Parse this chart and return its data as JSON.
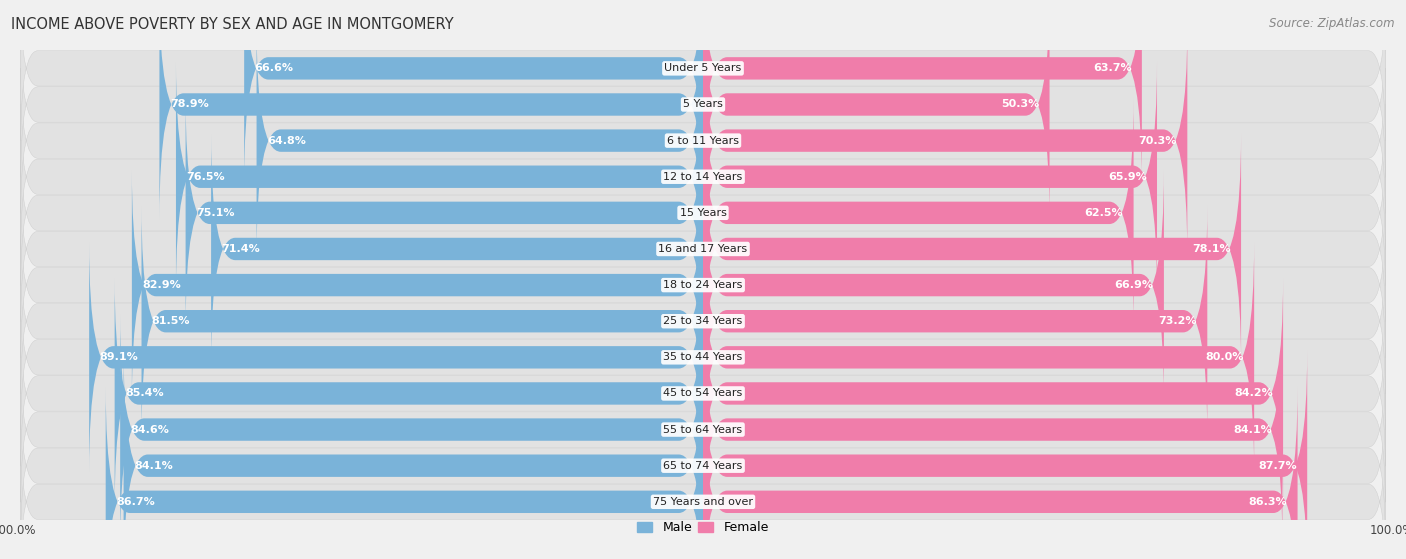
{
  "title": "INCOME ABOVE POVERTY BY SEX AND AGE IN MONTGOMERY",
  "source": "Source: ZipAtlas.com",
  "categories": [
    "Under 5 Years",
    "5 Years",
    "6 to 11 Years",
    "12 to 14 Years",
    "15 Years",
    "16 and 17 Years",
    "18 to 24 Years",
    "25 to 34 Years",
    "35 to 44 Years",
    "45 to 54 Years",
    "55 to 64 Years",
    "65 to 74 Years",
    "75 Years and over"
  ],
  "male_values": [
    66.6,
    78.9,
    64.8,
    76.5,
    75.1,
    71.4,
    82.9,
    81.5,
    89.1,
    85.4,
    84.6,
    84.1,
    86.7
  ],
  "female_values": [
    63.7,
    50.3,
    70.3,
    65.9,
    62.5,
    78.1,
    66.9,
    73.2,
    80.0,
    84.2,
    84.1,
    87.7,
    86.3
  ],
  "male_color": "#7ab3d9",
  "female_color": "#f07daa",
  "row_bg_color": "#e8e8e8",
  "background_color": "#f0f0f0",
  "male_label": "Male",
  "female_label": "Female",
  "title_fontsize": 10.5,
  "source_fontsize": 8.5,
  "cat_label_fontsize": 8,
  "bar_label_fontsize": 8
}
